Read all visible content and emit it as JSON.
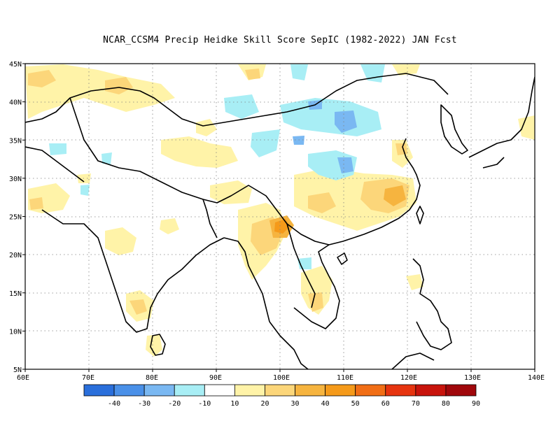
{
  "title": "NCAR_CCSM4 Precip Heidke Skill Score SepIC (1982-2022) JAN Fcst",
  "map": {
    "lon_range": [
      60,
      140
    ],
    "lat_range": [
      5,
      45
    ],
    "lon_ticks": [
      "60E",
      "70E",
      "80E",
      "90E",
      "100E",
      "110E",
      "120E",
      "130E",
      "140E"
    ],
    "lat_ticks": [
      "5N",
      "10N",
      "15N",
      "20N",
      "25N",
      "30N",
      "35N",
      "40N",
      "45N"
    ],
    "gridlines": "dotted"
  },
  "colorbar": {
    "colors": [
      "#2a6fdb",
      "#4a90e8",
      "#7ab8f2",
      "#a8eef5",
      "#ffffff",
      "#fff3a8",
      "#fcd67a",
      "#f6b43f",
      "#f59a1a",
      "#f16e16",
      "#e6340f",
      "#c8140c",
      "#a0070b"
    ],
    "labels": [
      "-40",
      "-30",
      "-20",
      "-10",
      "10",
      "20",
      "30",
      "40",
      "50",
      "60",
      "70",
      "80",
      "90"
    ]
  }
}
